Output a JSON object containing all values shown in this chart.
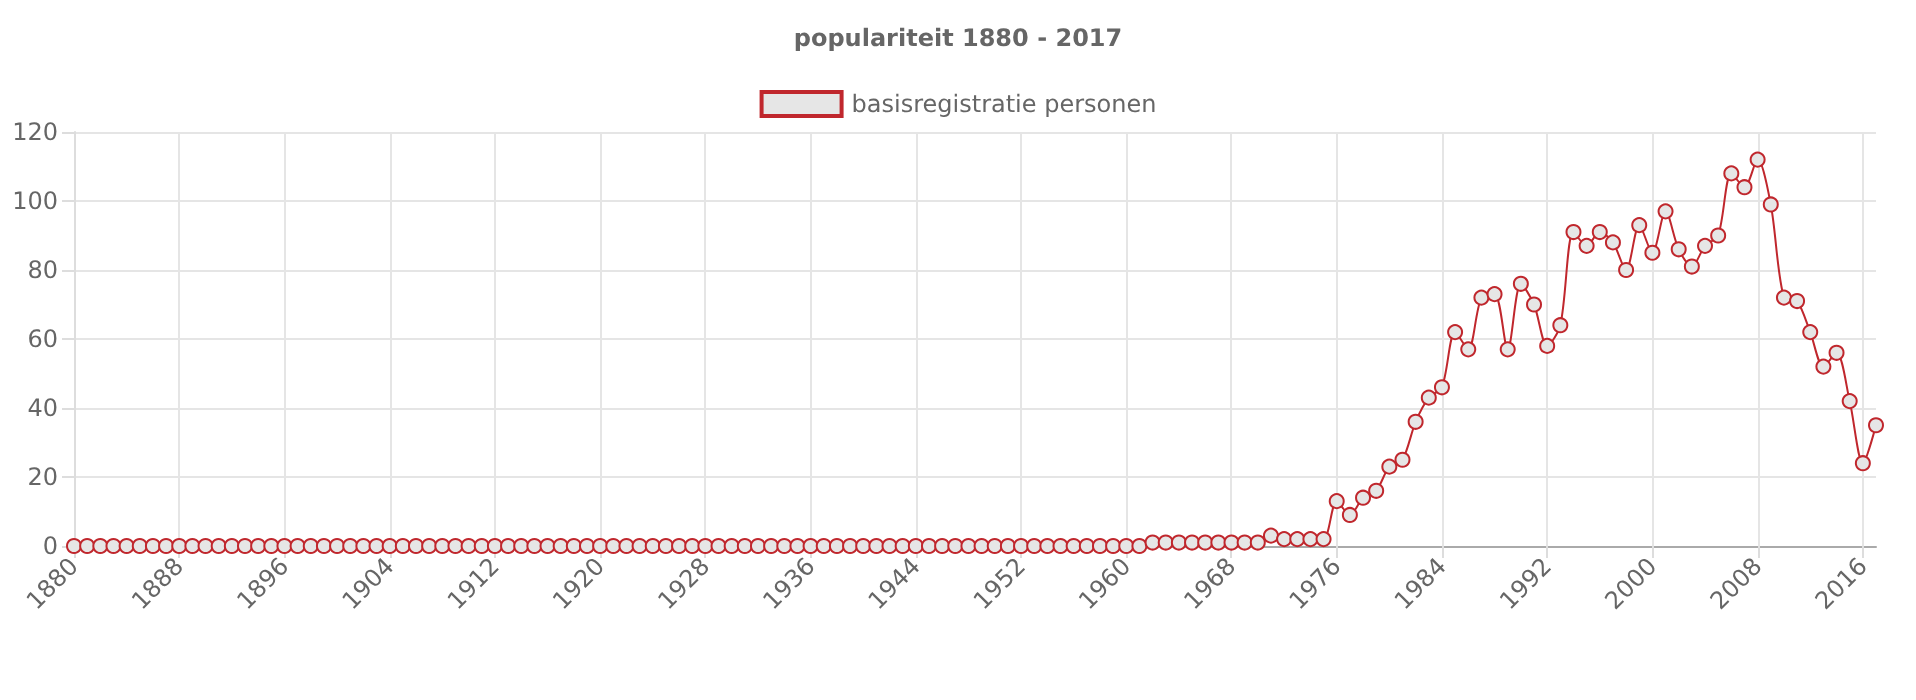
{
  "chart_data": {
    "type": "line",
    "title": "populariteit 1880 - 2017",
    "categories": [
      "1880",
      null,
      null,
      null,
      null,
      null,
      null,
      null,
      "1888",
      null,
      null,
      null,
      null,
      null,
      null,
      null,
      "1896",
      null,
      null,
      null,
      null,
      null,
      null,
      null,
      "1904",
      null,
      null,
      null,
      null,
      null,
      null,
      null,
      "1912",
      null,
      null,
      null,
      null,
      null,
      null,
      null,
      "1920",
      null,
      null,
      null,
      null,
      null,
      null,
      null,
      "1928",
      null,
      null,
      null,
      null,
      null,
      null,
      null,
      "1936",
      null,
      null,
      null,
      null,
      null,
      null,
      null,
      "1944",
      null,
      null,
      null,
      null,
      null,
      null,
      null,
      "1952",
      null,
      null,
      null,
      null,
      null,
      null,
      null,
      "1960",
      null,
      null,
      null,
      null,
      null,
      null,
      null,
      "1968",
      null,
      null,
      null,
      null,
      null,
      null,
      null,
      "1976",
      null,
      null,
      null,
      null,
      null,
      null,
      null,
      "1984",
      null,
      null,
      null,
      null,
      null,
      null,
      null,
      "1992",
      null,
      null,
      null,
      null,
      null,
      null,
      null,
      "2000",
      null,
      null,
      null,
      null,
      null,
      null,
      null,
      "2008",
      null,
      null,
      null,
      null,
      null,
      null,
      null,
      "2016",
      null
    ],
    "series": [
      {
        "name": "basisregistratie personen",
        "color": "#c0272d",
        "values": [
          0,
          0,
          0,
          0,
          0,
          0,
          0,
          0,
          0,
          0,
          0,
          0,
          0,
          0,
          0,
          0,
          0,
          0,
          0,
          0,
          0,
          0,
          0,
          0,
          0,
          0,
          0,
          0,
          0,
          0,
          0,
          0,
          0,
          0,
          0,
          0,
          0,
          0,
          0,
          0,
          0,
          0,
          0,
          0,
          0,
          0,
          0,
          0,
          0,
          0,
          0,
          0,
          0,
          0,
          0,
          0,
          0,
          0,
          0,
          0,
          0,
          0,
          0,
          0,
          0,
          0,
          0,
          0,
          0,
          0,
          0,
          0,
          0,
          0,
          0,
          0,
          0,
          0,
          0,
          0,
          0,
          0,
          1,
          1,
          1,
          1,
          1,
          1,
          1,
          1,
          1,
          3,
          2,
          2,
          2,
          2,
          13,
          9,
          14,
          16,
          23,
          25,
          36,
          43,
          46,
          62,
          57,
          72,
          73,
          57,
          76,
          70,
          58,
          64,
          91,
          87,
          91,
          88,
          80,
          93,
          85,
          97,
          86,
          81,
          87,
          90,
          108,
          104,
          112,
          99,
          72,
          71,
          62,
          52,
          56,
          42,
          24,
          35
        ]
      }
    ],
    "ylim": [
      0,
      120
    ],
    "yticks": [
      0,
      20,
      40,
      60,
      80,
      100,
      120
    ],
    "grid": true,
    "legend": "top",
    "marker": "circle",
    "line_style": "solid"
  }
}
